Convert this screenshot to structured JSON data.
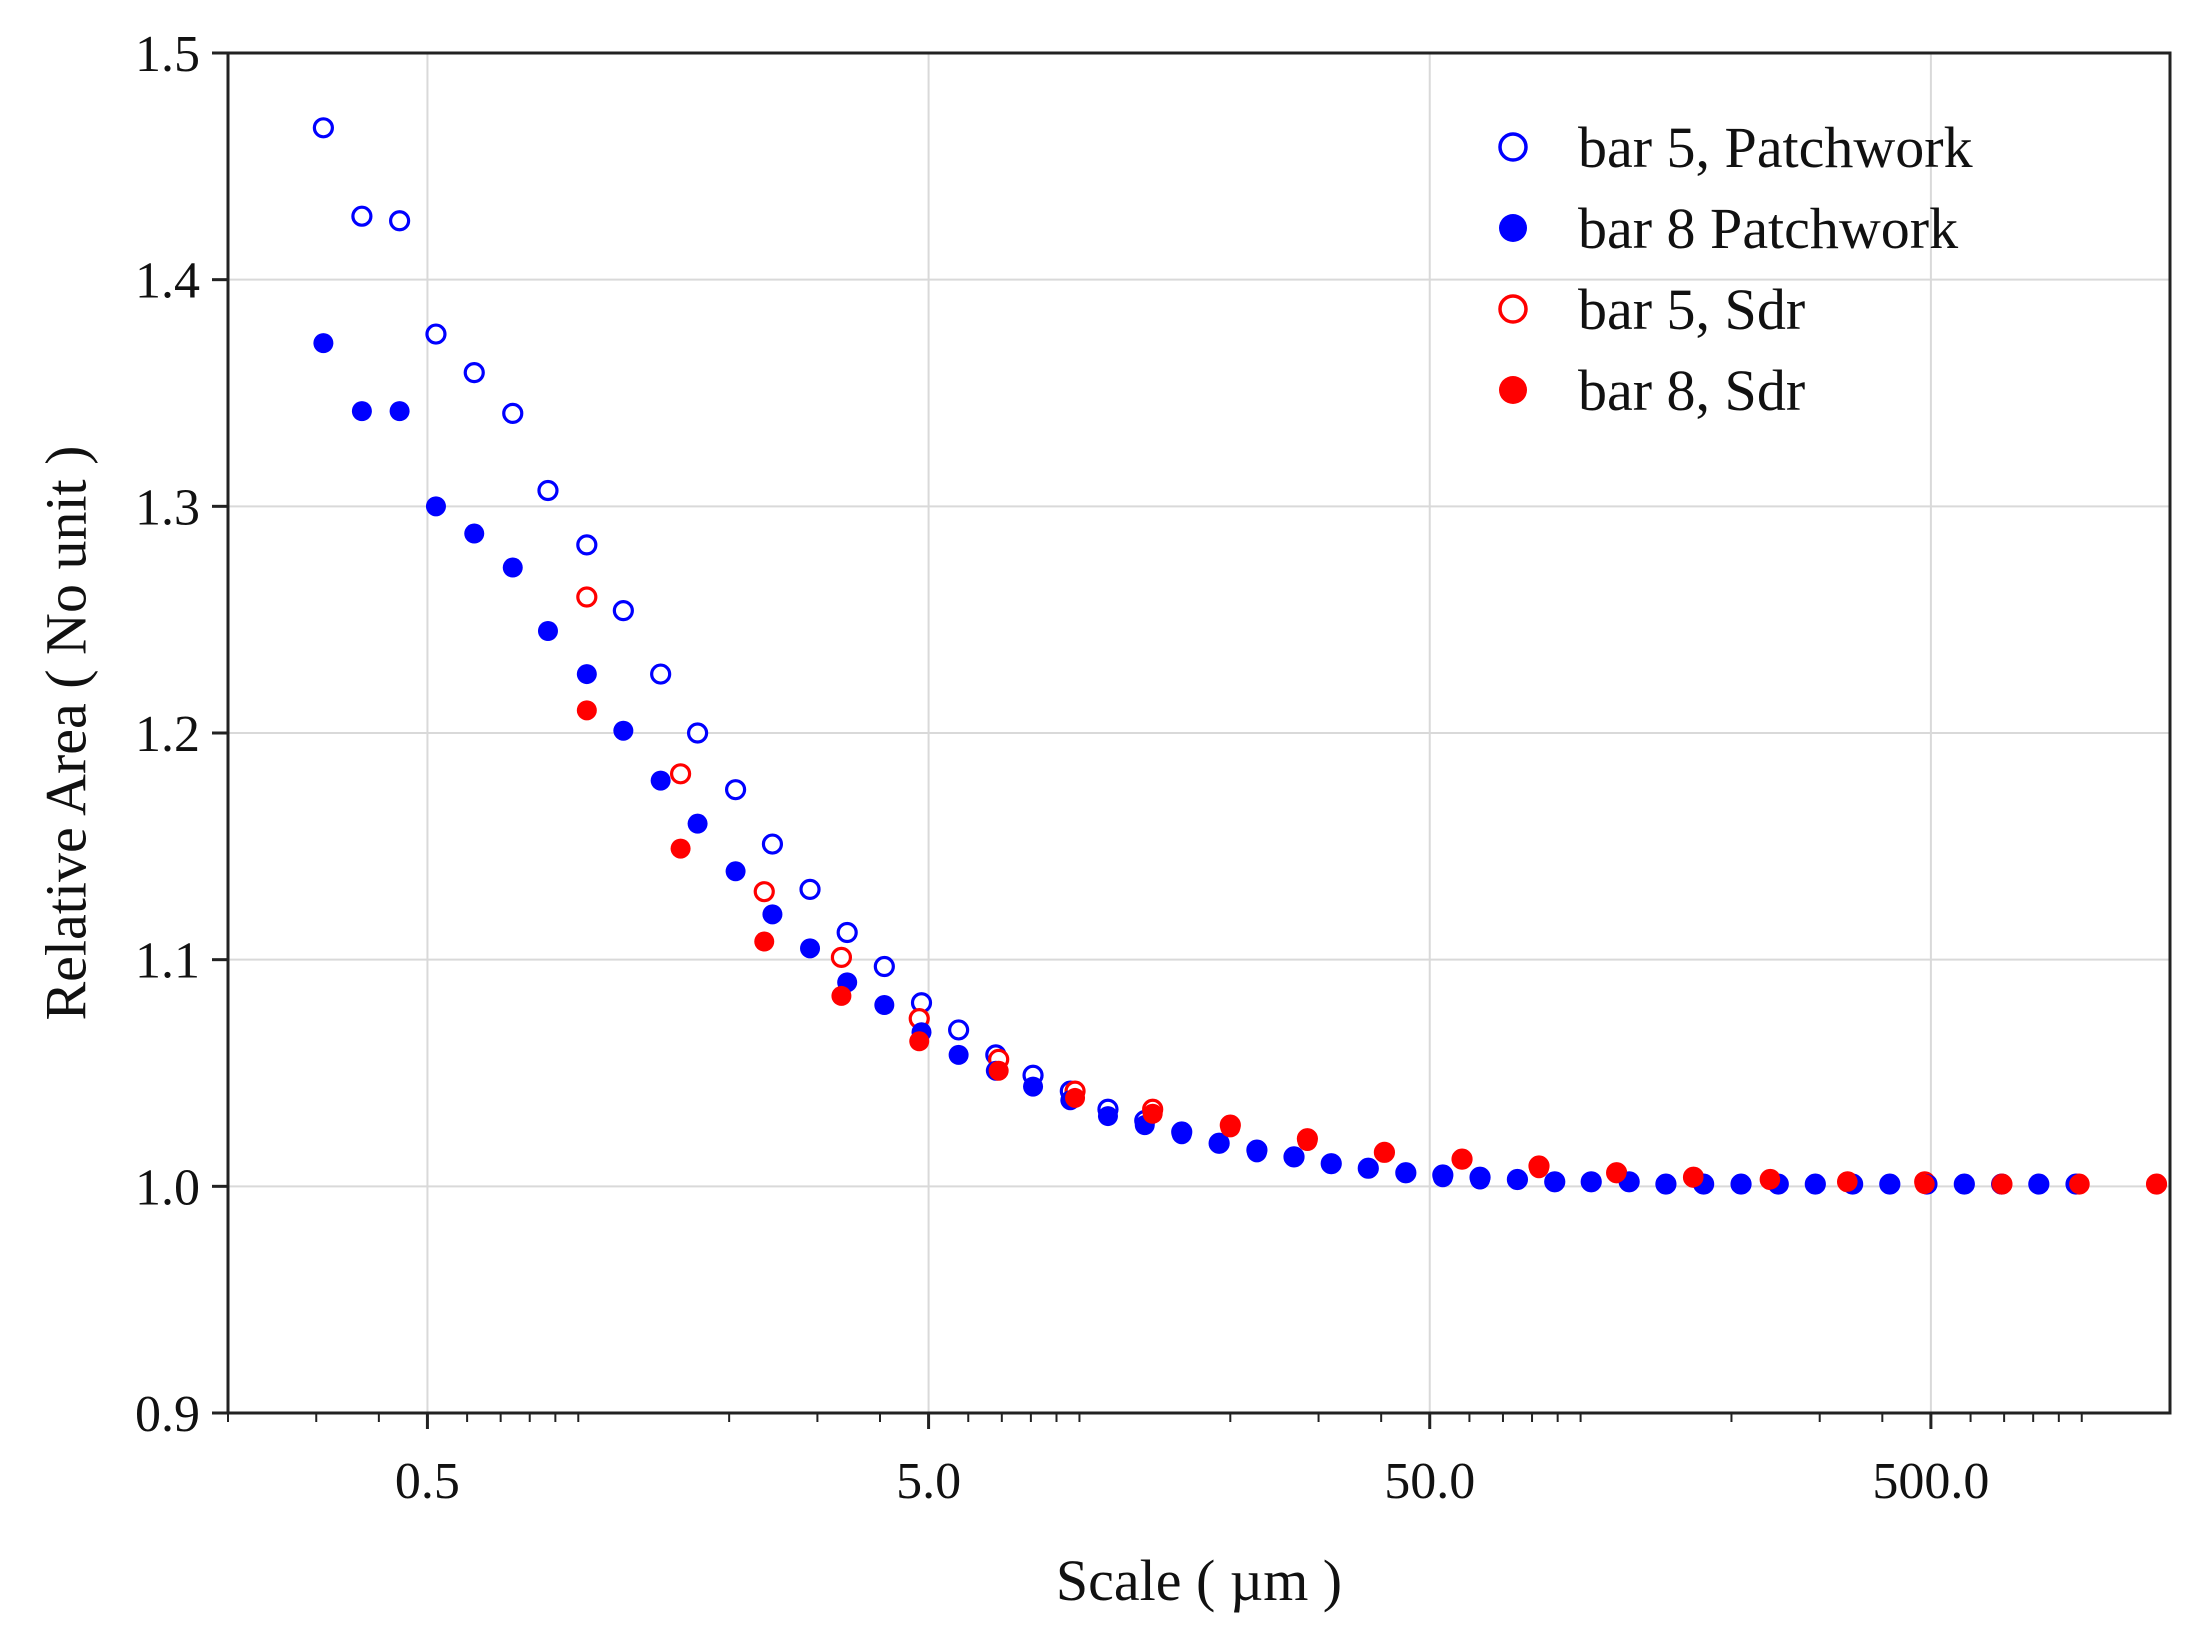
{
  "chart_data": {
    "type": "scatter",
    "title": "",
    "xlabel": "Scale ( µm )",
    "ylabel": "Relative Area ( No unit )",
    "xscale": "log",
    "xlim": [
      0.2,
      1500
    ],
    "ylim": [
      0.9,
      1.5
    ],
    "grid": true,
    "legend_position": "top-right",
    "x_ticks": [
      0.5,
      5,
      50,
      500
    ],
    "x_tick_labels": [
      "0.5",
      "5.0",
      "50.0",
      "500.0"
    ],
    "y_ticks": [
      0.9,
      1.0,
      1.1,
      1.2,
      1.3,
      1.4,
      1.5
    ],
    "y_tick_labels": [
      "0.9",
      "1.0",
      "1.1",
      "1.2",
      "1.3",
      "1.4",
      "1.5"
    ],
    "colors": {
      "blue": "#0000ff",
      "red": "#ff0000",
      "grid": "#d9d9d9",
      "frame": "#222222"
    },
    "series": [
      {
        "name": "bar 5, Patchwork",
        "color": "#0000ff",
        "marker": "open-circle",
        "x": [
          0.31,
          0.37,
          0.44,
          0.52,
          0.62,
          0.74,
          0.87,
          1.04,
          1.23,
          1.46,
          1.73,
          2.06,
          2.44,
          2.9,
          3.44,
          4.08,
          4.84,
          5.74,
          6.81,
          8.08,
          9.59,
          11.4,
          13.5,
          16.0,
          19.0,
          22.6,
          26.8,
          31.8,
          37.7,
          44.8,
          53.1,
          63.0,
          74.8,
          88.8,
          105,
          125,
          148,
          176,
          209,
          248,
          294,
          349,
          414,
          491,
          583,
          692,
          821,
          974
        ],
        "y": [
          1.467,
          1.428,
          1.426,
          1.376,
          1.359,
          1.341,
          1.307,
          1.283,
          1.254,
          1.226,
          1.2,
          1.175,
          1.151,
          1.131,
          1.112,
          1.097,
          1.081,
          1.069,
          1.058,
          1.049,
          1.042,
          1.034,
          1.029,
          1.024,
          1.019,
          1.016,
          1.013,
          1.01,
          1.008,
          1.006,
          1.005,
          1.004,
          1.003,
          1.002,
          1.002,
          1.002,
          1.001,
          1.001,
          1.001,
          1.001,
          1.001,
          1.001,
          1.001,
          1.001,
          1.001,
          1.001,
          1.001,
          1.001
        ]
      },
      {
        "name": "bar 8 Patchwork",
        "color": "#0000ff",
        "marker": "filled-circle",
        "x": [
          0.31,
          0.37,
          0.44,
          0.52,
          0.62,
          0.74,
          0.87,
          1.04,
          1.23,
          1.46,
          1.73,
          2.06,
          2.44,
          2.9,
          3.44,
          4.08,
          4.84,
          5.74,
          6.81,
          8.08,
          9.59,
          11.4,
          13.5,
          16.0,
          19.0,
          22.6,
          26.8,
          31.8,
          37.7,
          44.8,
          53.1,
          63.0,
          74.8,
          88.8,
          105,
          125,
          148,
          176,
          209,
          248,
          294,
          349,
          414,
          491,
          583,
          692,
          821,
          974
        ],
        "y": [
          1.372,
          1.342,
          1.342,
          1.3,
          1.288,
          1.273,
          1.245,
          1.226,
          1.201,
          1.179,
          1.16,
          1.139,
          1.12,
          1.105,
          1.09,
          1.08,
          1.068,
          1.058,
          1.051,
          1.044,
          1.038,
          1.031,
          1.027,
          1.023,
          1.019,
          1.015,
          1.013,
          1.01,
          1.008,
          1.006,
          1.004,
          1.003,
          1.003,
          1.002,
          1.002,
          1.002,
          1.001,
          1.001,
          1.001,
          1.001,
          1.001,
          1.001,
          1.001,
          1.001,
          1.001,
          1.001,
          1.001,
          1.001
        ]
      },
      {
        "name": "bar 5, Sdr",
        "color": "#ff0000",
        "marker": "open-circle",
        "x": [
          1.04,
          1.6,
          2.35,
          3.35,
          4.79,
          6.9,
          9.8,
          14.0,
          20.0,
          28.5,
          40.6,
          58,
          82.6,
          118,
          168,
          239,
          341,
          486,
          693,
          988,
          1410
        ],
        "y": [
          1.26,
          1.182,
          1.13,
          1.101,
          1.074,
          1.056,
          1.042,
          1.034,
          1.027,
          1.021,
          1.015,
          1.012,
          1.009,
          1.006,
          1.004,
          1.003,
          1.002,
          1.002,
          1.001,
          1.001,
          1.001
        ]
      },
      {
        "name": "bar 8, Sdr",
        "color": "#ff0000",
        "marker": "filled-circle",
        "x": [
          1.04,
          1.6,
          2.35,
          3.35,
          4.79,
          6.9,
          9.8,
          14.0,
          20.0,
          28.5,
          40.6,
          58,
          82.6,
          118,
          168,
          239,
          341,
          486,
          693,
          988,
          1410
        ],
        "y": [
          1.21,
          1.149,
          1.108,
          1.084,
          1.064,
          1.051,
          1.039,
          1.032,
          1.026,
          1.02,
          1.015,
          1.012,
          1.008,
          1.006,
          1.004,
          1.003,
          1.002,
          1.001,
          1.001,
          1.001,
          1.001
        ]
      }
    ]
  }
}
